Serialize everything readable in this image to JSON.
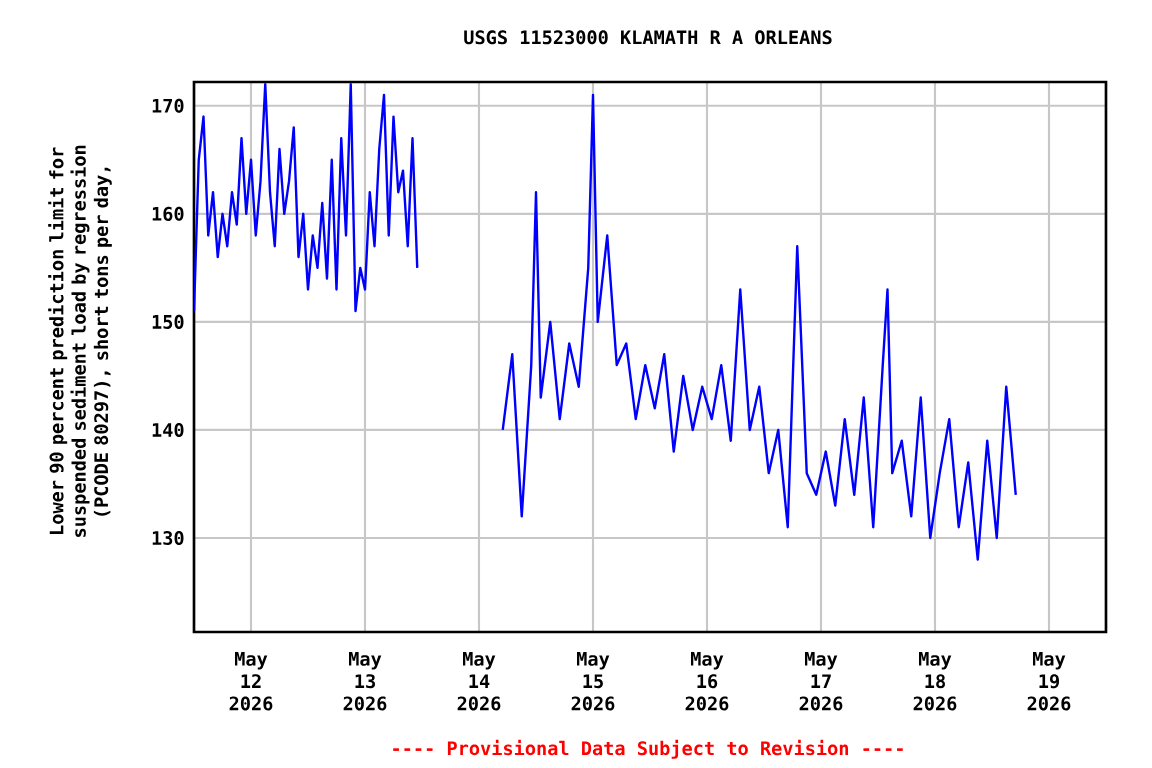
{
  "chart_data": {
    "type": "line",
    "title": "USGS 11523000 KLAMATH R A ORLEANS",
    "ylabel": "Lower 90 percent prediction limit for suspended sediment load by regression (PCODE 80297), short tons per day,",
    "annotations": [
      "---- Provisional Data Subject to Revision ----"
    ],
    "xlim": [
      "2026-05-11T12:00",
      "2026-05-19T12:00"
    ],
    "xticks": [
      {
        "value": "2026-05-12",
        "label": "May 12 2026"
      },
      {
        "value": "2026-05-13",
        "label": "May 13 2026"
      },
      {
        "value": "2026-05-14",
        "label": "May 14 2026"
      },
      {
        "value": "2026-05-15",
        "label": "May 15 2026"
      },
      {
        "value": "2026-05-16",
        "label": "May 16 2026"
      },
      {
        "value": "2026-05-17",
        "label": "May 17 2026"
      },
      {
        "value": "2026-05-18",
        "label": "May 18 2026"
      },
      {
        "value": "2026-05-19",
        "label": "May 19 2026"
      }
    ],
    "ylim": [
      121.3,
      172.2
    ],
    "yticks": [
      130,
      140,
      150,
      160,
      170
    ],
    "grid": true,
    "series": [
      {
        "color": "#0000ff",
        "x": [
          "2026-05-11T12:00",
          "2026-05-11T13:00",
          "2026-05-11T14:00",
          "2026-05-11T15:00",
          "2026-05-11T16:00",
          "2026-05-11T17:00",
          "2026-05-11T18:00",
          "2026-05-11T19:00",
          "2026-05-11T20:00",
          "2026-05-11T21:00",
          "2026-05-11T22:00",
          "2026-05-11T23:00",
          "2026-05-12T00:00",
          "2026-05-12T01:00",
          "2026-05-12T02:00",
          "2026-05-12T03:00",
          "2026-05-12T04:00",
          "2026-05-12T05:00",
          "2026-05-12T06:00",
          "2026-05-12T07:00",
          "2026-05-12T08:00",
          "2026-05-12T09:00",
          "2026-05-12T10:00",
          "2026-05-12T11:00",
          "2026-05-12T12:00",
          "2026-05-12T13:00",
          "2026-05-12T14:00",
          "2026-05-12T15:00",
          "2026-05-12T16:00",
          "2026-05-12T17:00",
          "2026-05-12T18:00",
          "2026-05-12T19:00",
          "2026-05-12T20:00",
          "2026-05-12T21:00",
          "2026-05-12T22:00",
          "2026-05-12T23:00",
          "2026-05-13T00:00",
          "2026-05-13T01:00",
          "2026-05-13T02:00",
          "2026-05-13T03:00",
          "2026-05-13T04:00",
          "2026-05-13T05:00",
          "2026-05-13T06:00",
          "2026-05-13T07:00",
          "2026-05-13T08:00",
          "2026-05-13T09:00",
          "2026-05-13T10:00",
          "2026-05-13T11:00",
          "2026-05-13T20:00",
          "2026-05-14T05:00",
          "2026-05-14T07:00",
          "2026-05-14T09:00",
          "2026-05-14T11:00",
          "2026-05-14T12:00",
          "2026-05-14T13:00",
          "2026-05-14T15:00",
          "2026-05-14T17:00",
          "2026-05-14T19:00",
          "2026-05-14T21:00",
          "2026-05-14T23:00",
          "2026-05-15T00:00",
          "2026-05-15T01:00",
          "2026-05-15T03:00",
          "2026-05-15T05:00",
          "2026-05-15T07:00",
          "2026-05-15T09:00",
          "2026-05-15T11:00",
          "2026-05-15T13:00",
          "2026-05-15T15:00",
          "2026-05-15T17:00",
          "2026-05-15T19:00",
          "2026-05-15T21:00",
          "2026-05-15T23:00",
          "2026-05-16T01:00",
          "2026-05-16T03:00",
          "2026-05-16T05:00",
          "2026-05-16T07:00",
          "2026-05-16T09:00",
          "2026-05-16T11:00",
          "2026-05-16T13:00",
          "2026-05-16T15:00",
          "2026-05-16T17:00",
          "2026-05-16T19:00",
          "2026-05-16T21:00",
          "2026-05-16T23:00",
          "2026-05-17T01:00",
          "2026-05-17T03:00",
          "2026-05-17T05:00",
          "2026-05-17T07:00",
          "2026-05-17T09:00",
          "2026-05-17T11:00",
          "2026-05-17T13:00",
          "2026-05-17T14:00",
          "2026-05-17T15:00",
          "2026-05-17T17:00",
          "2026-05-17T19:00",
          "2026-05-17T21:00",
          "2026-05-17T23:00",
          "2026-05-18T01:00",
          "2026-05-18T03:00",
          "2026-05-18T05:00",
          "2026-05-18T07:00",
          "2026-05-18T09:00",
          "2026-05-18T11:00",
          "2026-05-18T13:00",
          "2026-05-18T15:00",
          "2026-05-18T17:00"
        ],
        "values": [
          151,
          165,
          169,
          158,
          162,
          156,
          160,
          157,
          162,
          159,
          167,
          160,
          165,
          158,
          163,
          172,
          162,
          157,
          166,
          160,
          163,
          168,
          156,
          160,
          153,
          158,
          155,
          161,
          154,
          165,
          153,
          167,
          158,
          172,
          151,
          155,
          153,
          162,
          157,
          166,
          171,
          158,
          169,
          162,
          164,
          157,
          167,
          155,
          null,
          140,
          147,
          132,
          146,
          162,
          143,
          150,
          141,
          148,
          144,
          155,
          171,
          150,
          158,
          146,
          148,
          141,
          146,
          142,
          147,
          138,
          145,
          140,
          144,
          141,
          146,
          139,
          153,
          140,
          144,
          136,
          140,
          131,
          157,
          136,
          134,
          138,
          133,
          141,
          134,
          143,
          131,
          146,
          153,
          136,
          139,
          132,
          143,
          130,
          136,
          141,
          131,
          137,
          128,
          139,
          130,
          144,
          134
        ]
      }
    ]
  }
}
